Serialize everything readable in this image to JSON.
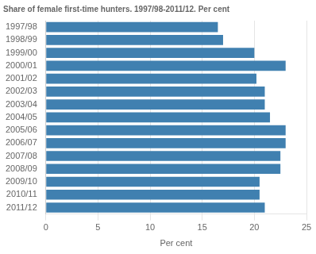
{
  "chart_data": {
    "type": "bar",
    "orientation": "horizontal",
    "title": "Share of female first-time hunters. 1997/98-2011/12. Per cent",
    "categories": [
      "1997/98",
      "1998/99",
      "1999/00",
      "2000/01",
      "2001/02",
      "2002/03",
      "2003/04",
      "2004/05",
      "2005/06",
      "2006/07",
      "2007/08",
      "2008/09",
      "2009/10",
      "2010/11",
      "2011/12"
    ],
    "values": [
      16.5,
      17.0,
      20.0,
      23.0,
      20.2,
      21.0,
      21.0,
      21.5,
      23.0,
      23.0,
      22.5,
      22.5,
      20.5,
      20.5,
      21.0
    ],
    "color": "#4080b0",
    "xlabel": "Per cent",
    "xlim": [
      0,
      25
    ],
    "xticks": [
      0,
      5,
      10,
      15,
      20,
      25
    ],
    "grid": true
  }
}
